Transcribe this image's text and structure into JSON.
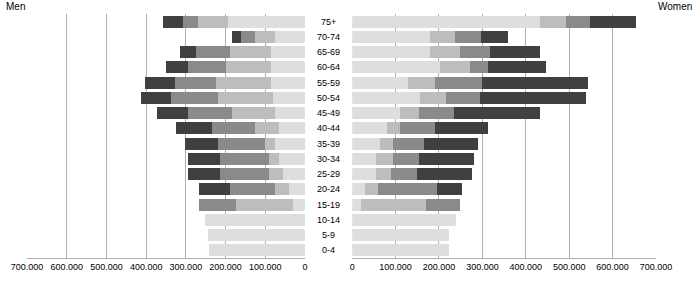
{
  "chart_data": [
    {
      "type": "bar",
      "title": "Men",
      "orientation": "horizontal",
      "stacked": true,
      "grid": true,
      "categories": [
        "0-4",
        "5-9",
        "10-14",
        "15-19",
        "20-24",
        "25-29",
        "30-34",
        "35-39",
        "40-44",
        "45-49",
        "50-54",
        "55-59",
        "60-64",
        "65-69",
        "70-74",
        "75+"
      ],
      "xlim": [
        700000,
        0
      ],
      "xticks": [
        {
          "value": 700000,
          "label": "700.000"
        },
        {
          "value": 600000,
          "label": "600.000"
        },
        {
          "value": 500000,
          "label": "500.000"
        },
        {
          "value": 400000,
          "label": "400.000"
        },
        {
          "value": 300000,
          "label": "300.000"
        },
        {
          "value": 200000,
          "label": "200.000"
        },
        {
          "value": 100000,
          "label": "100.000"
        },
        0
      ],
      "series": [
        {
          "color": "#dedede",
          "values": [
            242000,
            244000,
            252000,
            30000,
            40000,
            55000,
            65000,
            75000,
            65000,
            75000,
            80000,
            85000,
            85000,
            85000,
            75000,
            194000
          ]
        },
        {
          "color": "#bdbdbd",
          "values": [
            0,
            0,
            0,
            144000,
            35000,
            35000,
            25000,
            25000,
            60000,
            110000,
            140000,
            140000,
            115000,
            105000,
            50000,
            76000
          ]
        },
        {
          "color": "#8a8a8a",
          "values": [
            0,
            0,
            0,
            93000,
            115000,
            125000,
            125000,
            120000,
            110000,
            110000,
            118000,
            103000,
            95000,
            85000,
            35000,
            38000
          ]
        },
        {
          "color": "#404040",
          "values": [
            0,
            0,
            0,
            0,
            77000,
            80000,
            80000,
            82000,
            90000,
            78000,
            75000,
            75000,
            55000,
            40000,
            24000,
            50000
          ]
        }
      ]
    },
    {
      "type": "bar",
      "title": "Women",
      "orientation": "horizontal",
      "stacked": true,
      "grid": true,
      "categories": [
        "0-4",
        "5-9",
        "10-14",
        "15-19",
        "20-24",
        "25-29",
        "30-34",
        "35-39",
        "40-44",
        "45-49",
        "50-54",
        "55-59",
        "60-64",
        "65-69",
        "70-74",
        "75+"
      ],
      "xlim": [
        0,
        700000
      ],
      "xticks": [
        0,
        {
          "value": 100000,
          "label": "100.000"
        },
        {
          "value": 200000,
          "label": "200.000"
        },
        {
          "value": 300000,
          "label": "300.000"
        },
        {
          "value": 400000,
          "label": "400.000"
        },
        {
          "value": 500000,
          "label": "500.000"
        },
        {
          "value": 600000,
          "label": "600.000"
        },
        {
          "value": 700000,
          "label": "700.000"
        }
      ],
      "series": [
        {
          "color": "#dedede",
          "values": [
            224000,
            224000,
            240000,
            20000,
            30000,
            55000,
            55000,
            65000,
            80000,
            110000,
            157000,
            129000,
            203000,
            180000,
            180000,
            433000
          ]
        },
        {
          "color": "#bdbdbd",
          "values": [
            0,
            0,
            0,
            150000,
            30000,
            35000,
            40000,
            30000,
            30000,
            45000,
            58000,
            62000,
            69000,
            69000,
            58000,
            60000
          ]
        },
        {
          "color": "#8a8a8a",
          "values": [
            0,
            0,
            0,
            79000,
            135000,
            60000,
            60000,
            70000,
            80000,
            80000,
            80000,
            108000,
            41000,
            69000,
            58000,
            55000
          ]
        },
        {
          "color": "#404040",
          "values": [
            0,
            0,
            0,
            0,
            58000,
            126000,
            126000,
            125000,
            123000,
            198000,
            244000,
            244000,
            134000,
            115000,
            64000,
            106000
          ]
        }
      ]
    }
  ]
}
